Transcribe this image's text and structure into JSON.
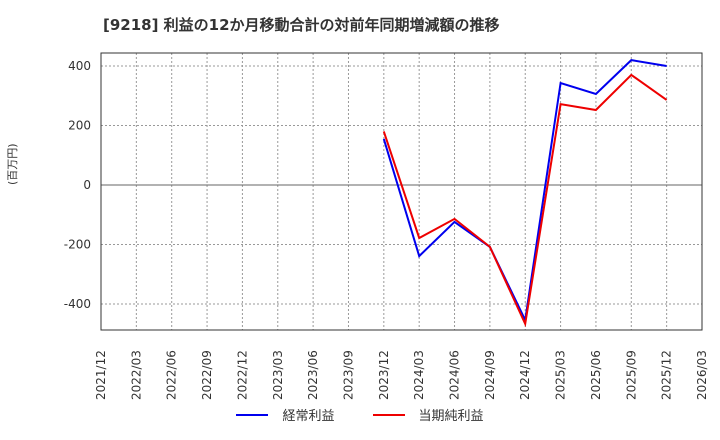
{
  "title": "[9218]  利益の12か月移動合計の対前年同期増減額の推移",
  "y_axis_label": "(百万円)",
  "legend": [
    {
      "label": "経常利益",
      "color": "#0000ee"
    },
    {
      "label": "当期純利益",
      "color": "#ee0000"
    }
  ],
  "chart_data": {
    "type": "line",
    "title": "[9218]  利益の12か月移動合計の対前年同期増減額の推移",
    "xlabel": "",
    "ylabel": "(百万円)",
    "ylim": [
      -490,
      445
    ],
    "yticks": [
      400,
      200,
      0,
      -200,
      -400
    ],
    "grid": true,
    "legend_position": "bottom",
    "x_tick_labels": [
      "2021/12",
      "2022/03",
      "2022/06",
      "2022/09",
      "2022/12",
      "2023/03",
      "2023/06",
      "2023/09",
      "2023/12",
      "2024/03",
      "2024/06",
      "2024/09",
      "2024/12",
      "2025/03",
      "2025/06",
      "2025/09",
      "2025/12",
      "2026/03"
    ],
    "x": [
      "2023/12",
      "2024/03",
      "2024/06",
      "2024/09",
      "2024/12",
      "2025/03",
      "2025/06",
      "2025/09",
      "2025/12"
    ],
    "series": [
      {
        "name": "経常利益",
        "color": "#0000ee",
        "values": [
          155,
          -239,
          -124,
          -208,
          -454,
          343,
          306,
          420,
          400
        ]
      },
      {
        "name": "当期純利益",
        "color": "#ee0000",
        "values": [
          180,
          -178,
          -114,
          -208,
          -467,
          272,
          252,
          370,
          286
        ]
      }
    ]
  }
}
